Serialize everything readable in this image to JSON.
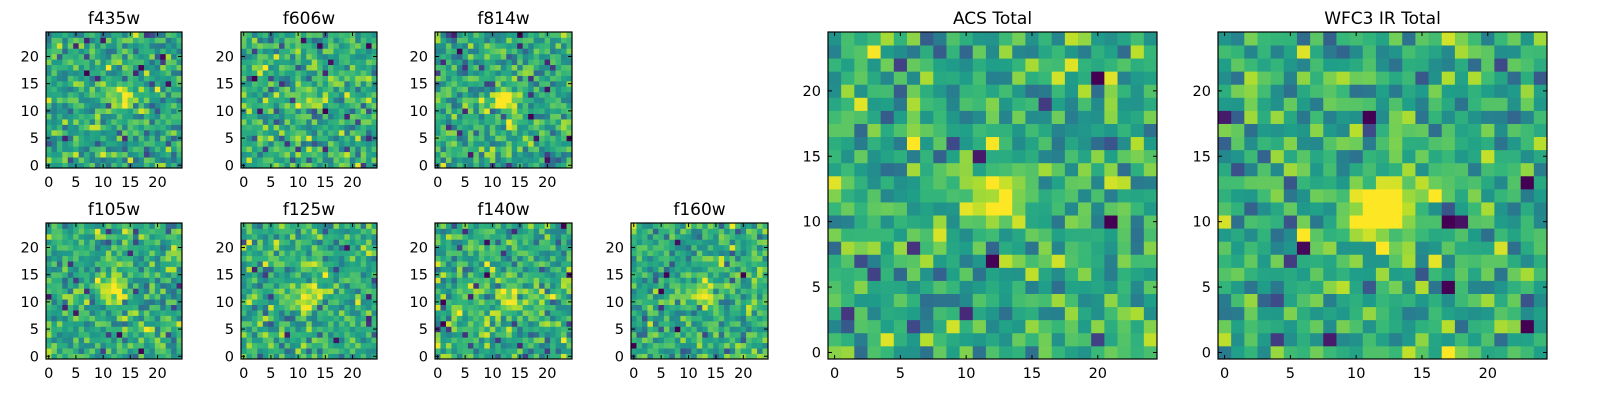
{
  "chart_data": [
    {
      "type": "heatmap",
      "title": "f435w",
      "grid_size": 25,
      "seed": 11,
      "hotspot": [
        13,
        13
      ],
      "hotspot_strength": 0.35,
      "xlim": [
        0,
        24
      ],
      "ylim": [
        0,
        24
      ],
      "xticks": [
        0,
        5,
        10,
        15,
        20
      ],
      "yticks": [
        0,
        5,
        10,
        15,
        20
      ],
      "colormap": "viridis"
    },
    {
      "type": "heatmap",
      "title": "f606w",
      "grid_size": 25,
      "seed": 23,
      "hotspot": [
        13,
        12
      ],
      "hotspot_strength": 0.25,
      "xlim": [
        0,
        24
      ],
      "ylim": [
        0,
        24
      ],
      "xticks": [
        0,
        5,
        10,
        15,
        20
      ],
      "yticks": [
        0,
        5,
        10,
        15,
        20
      ],
      "colormap": "viridis"
    },
    {
      "type": "heatmap",
      "title": "f814w",
      "grid_size": 25,
      "seed": 37,
      "hotspot": [
        12,
        12
      ],
      "hotspot_strength": 0.5,
      "xlim": [
        0,
        24
      ],
      "ylim": [
        0,
        24
      ],
      "xticks": [
        0,
        5,
        10,
        15,
        20
      ],
      "yticks": [
        0,
        5,
        10,
        15,
        20
      ],
      "colormap": "viridis"
    },
    {
      "type": "heatmap",
      "title": "f105w",
      "grid_size": 25,
      "seed": 41,
      "hotspot": [
        12,
        12
      ],
      "hotspot_strength": 0.3,
      "xlim": [
        0,
        24
      ],
      "ylim": [
        0,
        24
      ],
      "xticks": [
        0,
        5,
        10,
        15,
        20
      ],
      "yticks": [
        0,
        5,
        10,
        15,
        20
      ],
      "colormap": "viridis"
    },
    {
      "type": "heatmap",
      "title": "f125w",
      "grid_size": 25,
      "seed": 53,
      "hotspot": [
        12,
        11
      ],
      "hotspot_strength": 0.35,
      "xlim": [
        0,
        24
      ],
      "ylim": [
        0,
        24
      ],
      "xticks": [
        0,
        5,
        10,
        15,
        20
      ],
      "yticks": [
        0,
        5,
        10,
        15,
        20
      ],
      "colormap": "viridis"
    },
    {
      "type": "heatmap",
      "title": "f140w",
      "grid_size": 25,
      "seed": 67,
      "hotspot": [
        13,
        11
      ],
      "hotspot_strength": 0.35,
      "xlim": [
        0,
        24
      ],
      "ylim": [
        0,
        24
      ],
      "xticks": [
        0,
        5,
        10,
        15,
        20
      ],
      "yticks": [
        0,
        5,
        10,
        15,
        20
      ],
      "colormap": "viridis"
    },
    {
      "type": "heatmap",
      "title": "f160w",
      "grid_size": 25,
      "seed": 79,
      "hotspot": [
        13,
        12
      ],
      "hotspot_strength": 0.35,
      "xlim": [
        0,
        24
      ],
      "ylim": [
        0,
        24
      ],
      "xticks": [
        0,
        5,
        10,
        15,
        20
      ],
      "yticks": [
        0,
        5,
        10,
        15,
        20
      ],
      "colormap": "viridis"
    },
    {
      "type": "heatmap",
      "title": "ACS Total",
      "grid_size": 25,
      "seed": 97,
      "hotspot": [
        12,
        12
      ],
      "hotspot_strength": 0.45,
      "xlim": [
        0,
        24
      ],
      "ylim": [
        0,
        24
      ],
      "xticks": [
        0,
        5,
        10,
        15,
        20
      ],
      "yticks": [
        0,
        5,
        10,
        15,
        20
      ],
      "colormap": "viridis"
    },
    {
      "type": "heatmap",
      "title": "WFC3 IR Total",
      "grid_size": 25,
      "seed": 101,
      "hotspot": [
        12,
        11
      ],
      "hotspot_strength": 0.6,
      "xlim": [
        0,
        24
      ],
      "ylim": [
        0,
        24
      ],
      "xticks": [
        0,
        5,
        10,
        15,
        20
      ],
      "yticks": [
        0,
        5,
        10,
        15,
        20
      ],
      "colormap": "viridis"
    }
  ]
}
